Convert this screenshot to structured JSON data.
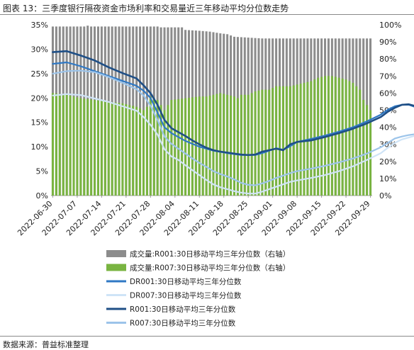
{
  "figure": {
    "title": "图表 13：三季度银行隔夜资金市场利率和交易量近三年移动平均分位数走势",
    "source": "数据来源：普益标准整理"
  },
  "colors": {
    "r001_volume": "#8c8c8c",
    "r007_volume": "#79b441",
    "dr001": "#2f78c4",
    "dr007": "#cfe4f7",
    "r001": "#1f4f86",
    "r007": "#9cc4ea"
  },
  "chart_data": {
    "type": "bar+line",
    "x_labels": [
      "2022-06-30",
      "2022-07-07",
      "2022-07-14",
      "2022-07-21",
      "2022-07-28",
      "2022-08-04",
      "2022-08-11",
      "2022-08-18",
      "2022-08-25",
      "2022-09-01",
      "2022-09-08",
      "2022-09-15",
      "2022-09-22",
      "2022-09-29"
    ],
    "y_left": {
      "ticks": [
        "0%",
        "5%",
        "10%",
        "15%",
        "20%",
        "25%",
        "30%",
        "35%"
      ],
      "range": [
        0,
        35
      ]
    },
    "y_right": {
      "ticks": [
        "0%",
        "10%",
        "20%",
        "30%",
        "40%",
        "50%",
        "60%",
        "70%",
        "80%",
        "90%",
        "100%"
      ],
      "range": [
        0,
        100
      ]
    },
    "bar_series": [
      {
        "name": "成交量:R001:30日移动平均三年分位数（右轴）",
        "color_key": "r001_volume",
        "points": [
          [
            0,
            99
          ],
          [
            9,
            99
          ],
          [
            10,
            99.5
          ],
          [
            11,
            99
          ],
          [
            30,
            99
          ],
          [
            31,
            98.5
          ],
          [
            37,
            98.5
          ],
          [
            38,
            97
          ],
          [
            42,
            96.5
          ],
          [
            45,
            96
          ],
          [
            48,
            95
          ],
          [
            50,
            94.5
          ],
          [
            52,
            93
          ],
          [
            56,
            92.5
          ],
          [
            60,
            92
          ]
        ]
      },
      {
        "name": "成交量:R007:30日移动平均三年分位数（右轴）",
        "color_key": "r007_volume",
        "points": [
          [
            0,
            60
          ],
          [
            4,
            59
          ],
          [
            8,
            57
          ],
          [
            12,
            56
          ],
          [
            16,
            55
          ],
          [
            20,
            54
          ],
          [
            24,
            52
          ],
          [
            26,
            50
          ],
          [
            27,
            52
          ],
          [
            28,
            58
          ],
          [
            29,
            57
          ],
          [
            30,
            56
          ],
          [
            32,
            50
          ],
          [
            34,
            56
          ],
          [
            38,
            57
          ],
          [
            42,
            58
          ],
          [
            44,
            58
          ],
          [
            46,
            59
          ],
          [
            48,
            60
          ],
          [
            50,
            59
          ],
          [
            52,
            58
          ],
          [
            53,
            57
          ],
          [
            54,
            59
          ],
          [
            56,
            59
          ],
          [
            58,
            61
          ],
          [
            60,
            62
          ],
          [
            62,
            62
          ],
          [
            64,
            64
          ],
          [
            66,
            64
          ],
          [
            68,
            64
          ],
          [
            70,
            65
          ],
          [
            72,
            66
          ],
          [
            74,
            67
          ],
          [
            76,
            69
          ],
          [
            78,
            70
          ],
          [
            80,
            70
          ],
          [
            82,
            69
          ],
          [
            84,
            68
          ],
          [
            86,
            66
          ],
          [
            88,
            62
          ],
          [
            89,
            56
          ],
          [
            91,
            50
          ],
          [
            93,
            43
          ],
          [
            94,
            36
          ],
          [
            95,
            37
          ]
        ]
      }
    ],
    "line_series": [
      {
        "name": "DR001:30日移动平均三年分位数",
        "color_key": "dr001",
        "points": [
          [
            0,
            27
          ],
          [
            4,
            27.3
          ],
          [
            8,
            26.5
          ],
          [
            12,
            25.5
          ],
          [
            16,
            24.5
          ],
          [
            20,
            23.5
          ],
          [
            24,
            22.5
          ],
          [
            26,
            21.5
          ],
          [
            28,
            20
          ],
          [
            30,
            17
          ],
          [
            32,
            14
          ],
          [
            34,
            12.8
          ],
          [
            36,
            12
          ],
          [
            38,
            11.2
          ],
          [
            42,
            10
          ],
          [
            46,
            9.2
          ],
          [
            50,
            8.7
          ],
          [
            54,
            8.3
          ],
          [
            58,
            8.3
          ],
          [
            60,
            8.7
          ],
          [
            62,
            9.2
          ],
          [
            64,
            9.7
          ],
          [
            66,
            9.4
          ],
          [
            68,
            10.1
          ],
          [
            70,
            11.0
          ],
          [
            74,
            11.6
          ],
          [
            78,
            12.3
          ],
          [
            82,
            13.1
          ],
          [
            86,
            14.0
          ],
          [
            90,
            15.2
          ],
          [
            94,
            16.6
          ],
          [
            96,
            17.6
          ],
          [
            98,
            18.3
          ],
          [
            100,
            18.6
          ],
          [
            102,
            18.6
          ],
          [
            104,
            18.1
          ],
          [
            105,
            19.2
          ]
        ]
      },
      {
        "name": "DR007:30日移动平均三年分位数",
        "color_key": "dr007",
        "points": [
          [
            0,
            20.5
          ],
          [
            4,
            20.8
          ],
          [
            8,
            20.6
          ],
          [
            12,
            19.9
          ],
          [
            16,
            19.2
          ],
          [
            20,
            18.3
          ],
          [
            24,
            17.4
          ],
          [
            26,
            16.1
          ],
          [
            28,
            14.5
          ],
          [
            30,
            12.5
          ],
          [
            32,
            9.5
          ],
          [
            34,
            8
          ],
          [
            36,
            7.3
          ],
          [
            38,
            6.2
          ],
          [
            40,
            5.2
          ],
          [
            42,
            4.2
          ],
          [
            44,
            3.2
          ],
          [
            46,
            2.3
          ],
          [
            48,
            1.7
          ],
          [
            50,
            1.3
          ],
          [
            52,
            0.9
          ],
          [
            54,
            0.6
          ],
          [
            56,
            0.4
          ],
          [
            58,
            0.4
          ],
          [
            60,
            0.8
          ],
          [
            62,
            1.3
          ],
          [
            64,
            1.8
          ],
          [
            66,
            2.3
          ],
          [
            68,
            2.8
          ],
          [
            70,
            3.1
          ],
          [
            74,
            3.6
          ],
          [
            78,
            4.2
          ],
          [
            82,
            5.0
          ],
          [
            86,
            6.0
          ],
          [
            90,
            7.3
          ],
          [
            94,
            8.7
          ],
          [
            96,
            9.8
          ],
          [
            98,
            10.8
          ],
          [
            100,
            11.5
          ],
          [
            102,
            11.9
          ],
          [
            104,
            12.3
          ],
          [
            105,
            14.2
          ]
        ]
      },
      {
        "name": "R001:30日移动平均三年分位数",
        "color_key": "r001",
        "points": [
          [
            0,
            29.4
          ],
          [
            4,
            29.6
          ],
          [
            8,
            28.7
          ],
          [
            12,
            27.7
          ],
          [
            16,
            26.3
          ],
          [
            20,
            25.1
          ],
          [
            24,
            24.0
          ],
          [
            26,
            22.6
          ],
          [
            28,
            21.0
          ],
          [
            30,
            18.6
          ],
          [
            32,
            15.5
          ],
          [
            34,
            13.8
          ],
          [
            36,
            13.0
          ],
          [
            38,
            12.2
          ],
          [
            40,
            11.3
          ],
          [
            42,
            10.5
          ],
          [
            44,
            9.8
          ],
          [
            46,
            9.3
          ],
          [
            48,
            9.0
          ],
          [
            50,
            8.8
          ],
          [
            52,
            8.6
          ],
          [
            54,
            8.4
          ],
          [
            56,
            8.3
          ],
          [
            58,
            8.4
          ],
          [
            60,
            9.0
          ],
          [
            62,
            9.3
          ],
          [
            64,
            9.6
          ],
          [
            66,
            9.3
          ],
          [
            68,
            10.5
          ],
          [
            70,
            11.0
          ],
          [
            74,
            11.3
          ],
          [
            78,
            12.0
          ],
          [
            82,
            12.8
          ],
          [
            86,
            13.7
          ],
          [
            90,
            14.8
          ],
          [
            94,
            16.1
          ],
          [
            96,
            17.2
          ],
          [
            98,
            18.0
          ],
          [
            100,
            18.6
          ],
          [
            102,
            18.7
          ],
          [
            104,
            18.3
          ],
          [
            105,
            19.6
          ]
        ]
      },
      {
        "name": "R007:30日移动平均三年分位数",
        "color_key": "r007",
        "points": [
          [
            0,
            25.0
          ],
          [
            4,
            25.5
          ],
          [
            8,
            25.6
          ],
          [
            12,
            25.3
          ],
          [
            16,
            24.3
          ],
          [
            20,
            23.1
          ],
          [
            24,
            21.8
          ],
          [
            26,
            20.5
          ],
          [
            28,
            18.4
          ],
          [
            30,
            15.5
          ],
          [
            32,
            12.1
          ],
          [
            34,
            10.6
          ],
          [
            36,
            9.6
          ],
          [
            38,
            8.6
          ],
          [
            40,
            7.6
          ],
          [
            42,
            6.7
          ],
          [
            44,
            5.9
          ],
          [
            46,
            5.0
          ],
          [
            48,
            4.4
          ],
          [
            50,
            3.9
          ],
          [
            52,
            3.3
          ],
          [
            54,
            2.6
          ],
          [
            56,
            2.2
          ],
          [
            58,
            2.1
          ],
          [
            60,
            2.5
          ],
          [
            62,
            3.0
          ],
          [
            64,
            3.6
          ],
          [
            66,
            4.1
          ],
          [
            68,
            4.6
          ],
          [
            70,
            5.0
          ],
          [
            74,
            5.5
          ],
          [
            78,
            6.1
          ],
          [
            82,
            6.8
          ],
          [
            86,
            7.6
          ],
          [
            90,
            8.6
          ],
          [
            94,
            9.9
          ],
          [
            96,
            10.8
          ],
          [
            98,
            11.7
          ],
          [
            100,
            12.1
          ],
          [
            102,
            12.4
          ],
          [
            104,
            12.6
          ],
          [
            105,
            13.7
          ]
        ]
      }
    ],
    "legend": [
      "成交量:R001:30日移动平均三年分位数（右轴）",
      "成交量:R007:30日移动平均三年分位数（右轴）",
      "DR001:30日移动平均三年分位数",
      "DR007:30日移动平均三年分位数",
      "R001:30日移动平均三年分位数",
      "R007:30日移动平均三年分位数"
    ],
    "legend_position": "bottom"
  }
}
